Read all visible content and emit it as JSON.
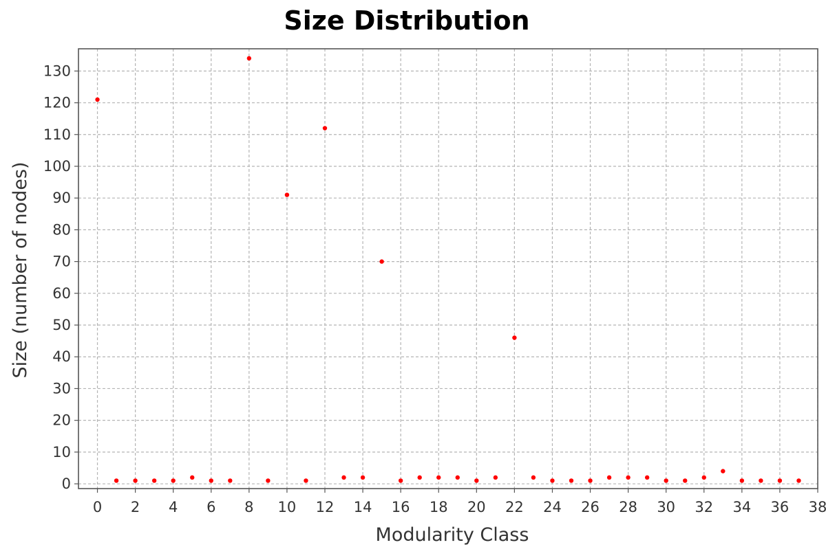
{
  "chart_data": {
    "type": "scatter",
    "title": "Size Distribution",
    "xlabel": "Modularity Class",
    "ylabel": "Size (number of nodes)",
    "xlim": [
      -1,
      38
    ],
    "ylim": [
      -1.5,
      137
    ],
    "x_ticks": [
      0,
      2,
      4,
      6,
      8,
      10,
      12,
      14,
      16,
      18,
      20,
      22,
      24,
      26,
      28,
      30,
      32,
      34,
      36,
      38
    ],
    "y_ticks": [
      0,
      10,
      20,
      30,
      40,
      50,
      60,
      70,
      80,
      90,
      100,
      110,
      120,
      130
    ],
    "grid": true,
    "series": [
      {
        "name": "Size",
        "color": "#ff0000",
        "x": [
          0,
          1,
          2,
          3,
          4,
          5,
          6,
          7,
          8,
          9,
          10,
          11,
          12,
          13,
          14,
          15,
          16,
          17,
          18,
          19,
          20,
          21,
          22,
          23,
          24,
          25,
          26,
          27,
          28,
          29,
          30,
          31,
          32,
          33,
          34,
          35,
          36,
          37
        ],
        "y": [
          121,
          1,
          1,
          1,
          1,
          2,
          1,
          1,
          134,
          1,
          91,
          1,
          112,
          2,
          2,
          70,
          1,
          2,
          2,
          2,
          1,
          2,
          46,
          2,
          1,
          1,
          1,
          2,
          2,
          2,
          1,
          1,
          2,
          4,
          1,
          1,
          1,
          1
        ]
      }
    ]
  }
}
